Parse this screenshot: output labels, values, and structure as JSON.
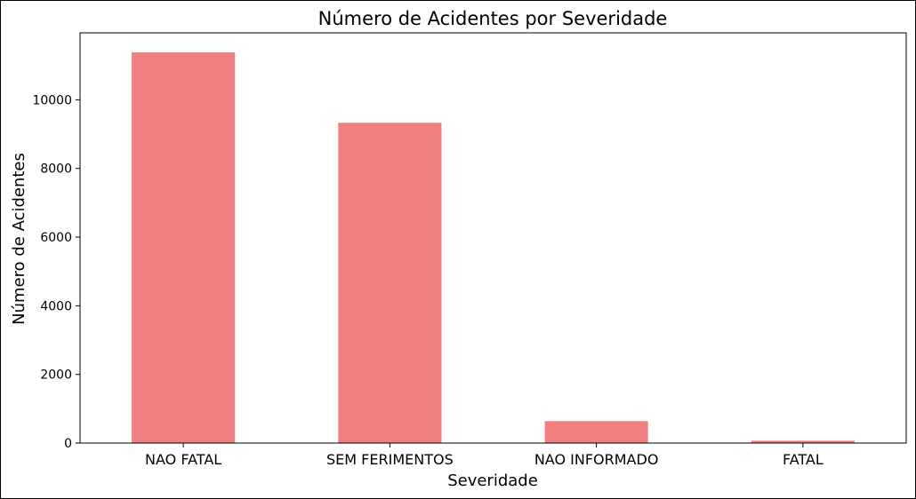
{
  "chart_data": {
    "type": "bar",
    "title": "Número de Acidentes por Severidade",
    "xlabel": "Severidade",
    "ylabel": "Número de Acidentes",
    "categories": [
      "NAO FATAL",
      "SEM FERIMENTOS",
      "NAO INFORMADO",
      "FATAL"
    ],
    "values": [
      11380,
      9330,
      640,
      70
    ],
    "ylim": [
      0,
      11950
    ],
    "yticks": [
      0,
      2000,
      4000,
      6000,
      8000,
      10000
    ],
    "bar_color": "#f08080",
    "grid": false,
    "legend": "none"
  }
}
